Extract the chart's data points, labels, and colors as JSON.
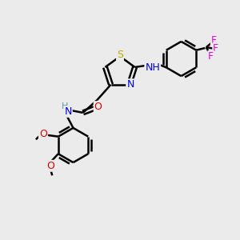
{
  "bg_color": "#ebebeb",
  "bond_color": "#000000",
  "bond_width": 1.8,
  "colors": {
    "N": "#0000ee",
    "O": "#dd0000",
    "S": "#bbaa00",
    "F": "#ee00ee",
    "C": "#000000",
    "H": "#559999"
  },
  "font_size": 9,
  "font_size_atom": 9
}
